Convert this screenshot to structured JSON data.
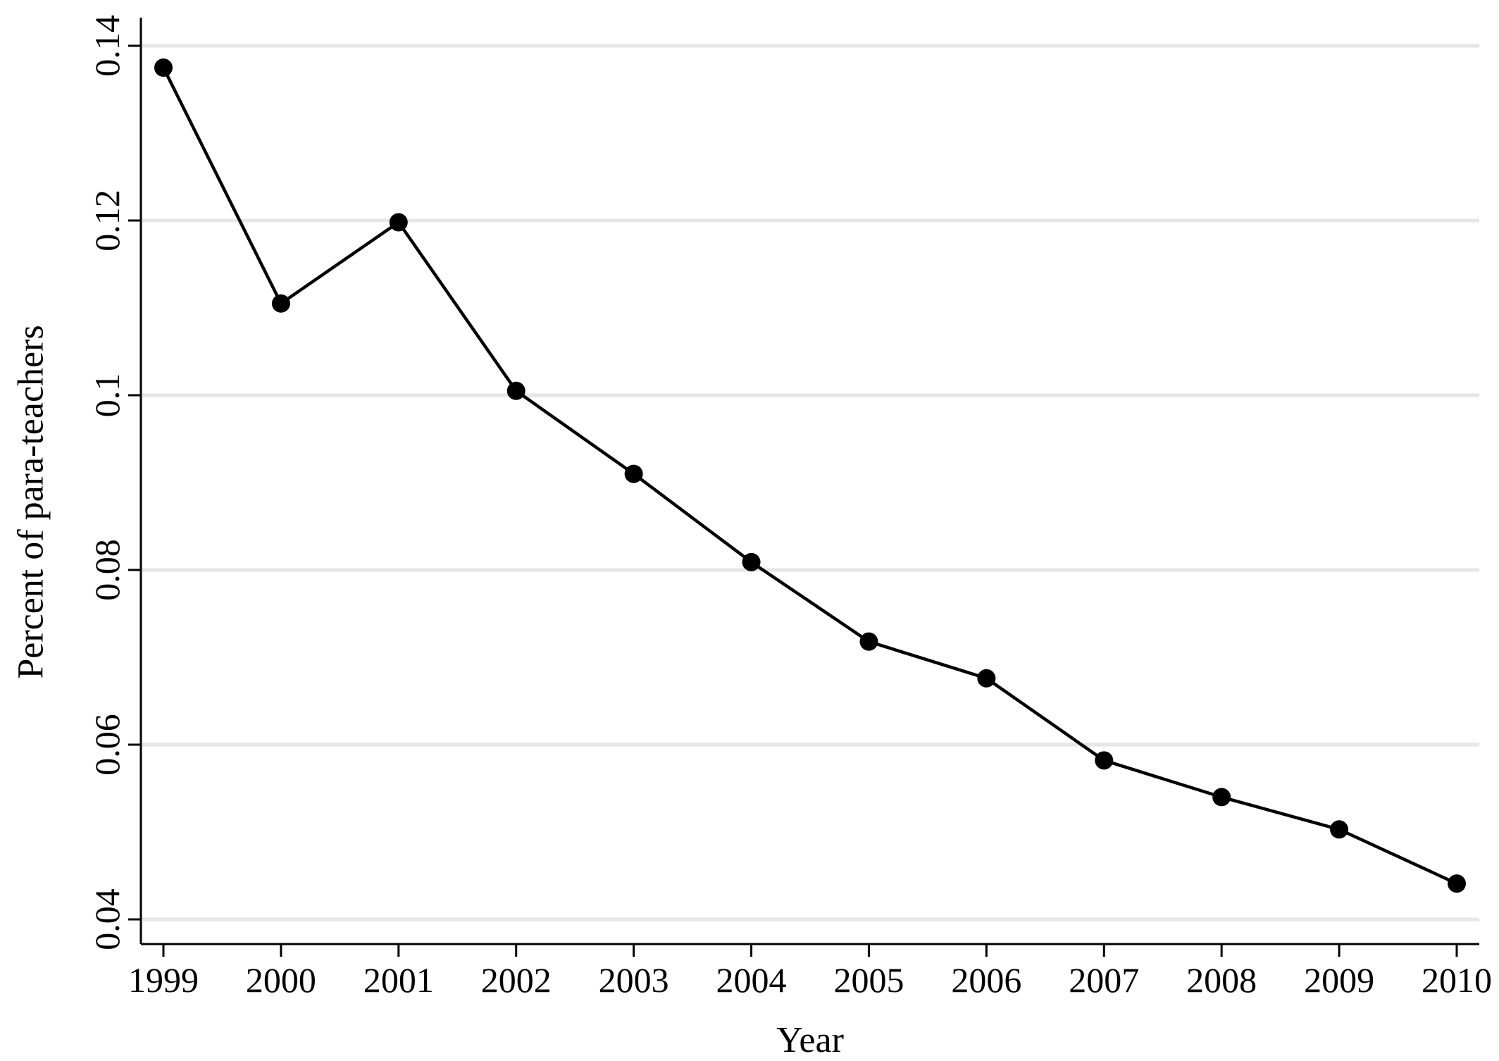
{
  "chart_data": {
    "type": "line",
    "title": "",
    "xlabel": "Year",
    "ylabel": "Percent of para-teachers",
    "xlim": [
      1999,
      2010
    ],
    "ylim": [
      0.04,
      0.14
    ],
    "x_ticks": [
      "1999",
      "2000",
      "2001",
      "2002",
      "2003",
      "2004",
      "2005",
      "2006",
      "2007",
      "2008",
      "2009",
      "2010"
    ],
    "y_ticks": [
      "0.04",
      "0.06",
      "0.08",
      "0.1",
      "0.12",
      "0.14"
    ],
    "grid": "horizontal",
    "legend": "none",
    "series": [
      {
        "x": [
          1999,
          2000,
          2001,
          2002,
          2003,
          2004,
          2005,
          2006,
          2007,
          2008,
          2009,
          2010
        ],
        "values": [
          0.1375,
          0.1105,
          0.1198,
          0.1005,
          0.091,
          0.0809,
          0.0718,
          0.0676,
          0.0582,
          0.054,
          0.0503,
          0.0441
        ],
        "color": "#000000",
        "marker": "circle"
      }
    ]
  }
}
